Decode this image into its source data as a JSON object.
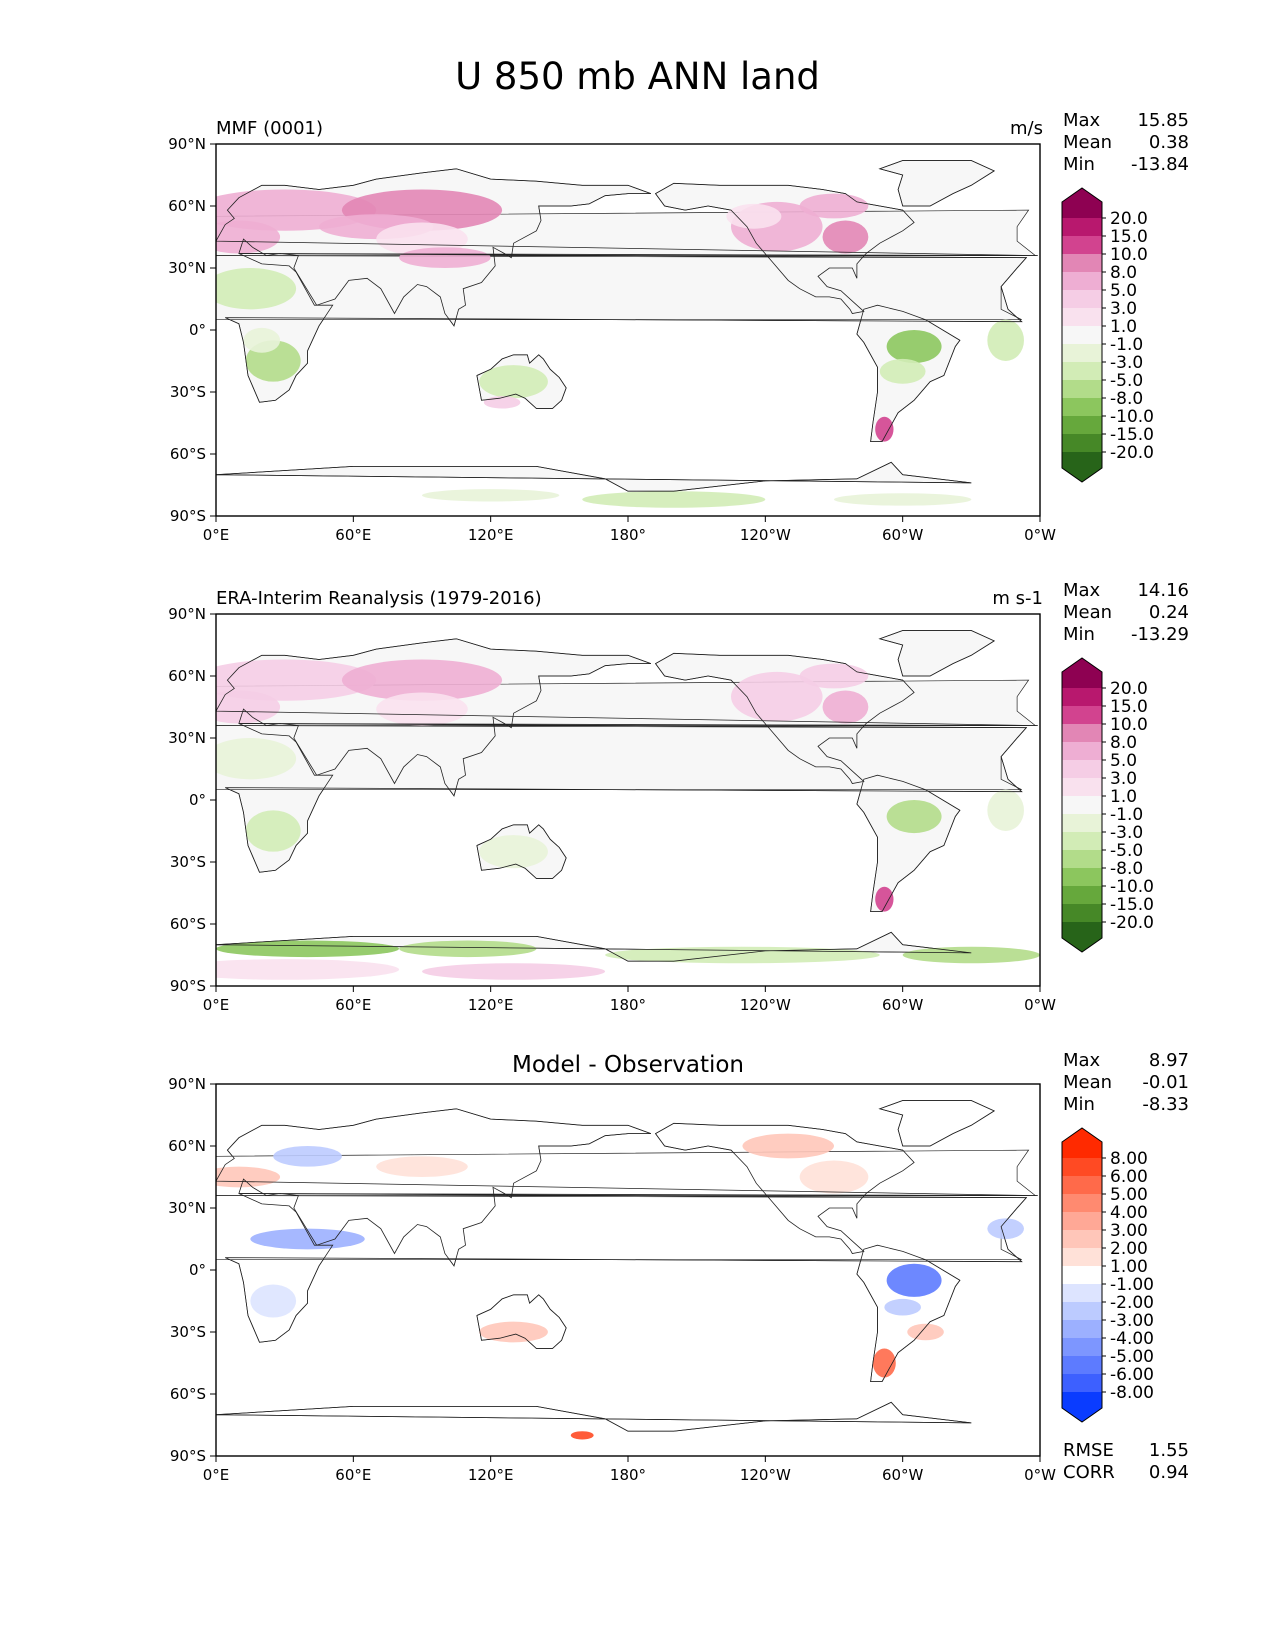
{
  "figure": {
    "title": "U 850 mb ANN land"
  },
  "axes": {
    "lat_ticks": [
      "90°N",
      "60°N",
      "30°N",
      "0°",
      "30°S",
      "60°S",
      "90°S"
    ],
    "lon_ticks": [
      "0°E",
      "60°E",
      "120°E",
      "180°",
      "120°W",
      "60°W",
      "0°W"
    ]
  },
  "panels": [
    {
      "title": "MMF (0001)",
      "units": "m/s",
      "stats": [
        {
          "label": "Max",
          "value": "15.85"
        },
        {
          "label": "Mean",
          "value": "0.38"
        },
        {
          "label": "Min",
          "value": "-13.84"
        }
      ],
      "colorbar": {
        "palette": "pink-green",
        "labels": [
          "20.0",
          "15.0",
          "10.0",
          "8.0",
          "5.0",
          "3.0",
          "1.0",
          "-1.0",
          "-3.0",
          "-5.0",
          "-8.0",
          "-10.0",
          "-15.0",
          "-20.0"
        ],
        "colors": [
          "#8e0152",
          "#b8186e",
          "#d2438f",
          "#e286b5",
          "#eeaed3",
          "#f5cde5",
          "#f9e1ee",
          "#f7f7f7",
          "#e8f3d8",
          "#d2ecb6",
          "#b2dc8a",
          "#8cc65e",
          "#66a83c",
          "#468827",
          "#276419"
        ]
      }
    },
    {
      "title": "ERA-Interim Reanalysis (1979-2016)",
      "units": "m s-1",
      "stats": [
        {
          "label": "Max",
          "value": "14.16"
        },
        {
          "label": "Mean",
          "value": "0.24"
        },
        {
          "label": "Min",
          "value": "-13.29"
        }
      ],
      "colorbar": {
        "palette": "pink-green",
        "labels": [
          "20.0",
          "15.0",
          "10.0",
          "8.0",
          "5.0",
          "3.0",
          "1.0",
          "-1.0",
          "-3.0",
          "-5.0",
          "-8.0",
          "-10.0",
          "-15.0",
          "-20.0"
        ],
        "colors": [
          "#8e0152",
          "#b8186e",
          "#d2438f",
          "#e286b5",
          "#eeaed3",
          "#f5cde5",
          "#f9e1ee",
          "#f7f7f7",
          "#e8f3d8",
          "#d2ecb6",
          "#b2dc8a",
          "#8cc65e",
          "#66a83c",
          "#468827",
          "#276419"
        ]
      }
    },
    {
      "title": "Model - Observation",
      "units": "",
      "stats": [
        {
          "label": "Max",
          "value": "8.97"
        },
        {
          "label": "Mean",
          "value": "-0.01"
        },
        {
          "label": "Min",
          "value": "-8.33"
        }
      ],
      "extra_stats": [
        {
          "label": "RMSE",
          "value": "1.55"
        },
        {
          "label": "CORR",
          "value": "0.94"
        }
      ],
      "colorbar": {
        "palette": "red-blue",
        "labels": [
          "8.00",
          "6.00",
          "5.00",
          "4.00",
          "3.00",
          "2.00",
          "1.00",
          "-1.00",
          "-2.00",
          "-3.00",
          "-4.00",
          "-5.00",
          "-6.00",
          "-8.00"
        ],
        "colors": [
          "#ff2a00",
          "#ff4a23",
          "#ff6a4a",
          "#ff8a70",
          "#ffa896",
          "#ffc6b9",
          "#ffe1d8",
          "#ffffff",
          "#dde4ff",
          "#bccbff",
          "#9cb0ff",
          "#7d96ff",
          "#5d7bff",
          "#3d60ff",
          "#0a3cff"
        ]
      }
    }
  ]
}
